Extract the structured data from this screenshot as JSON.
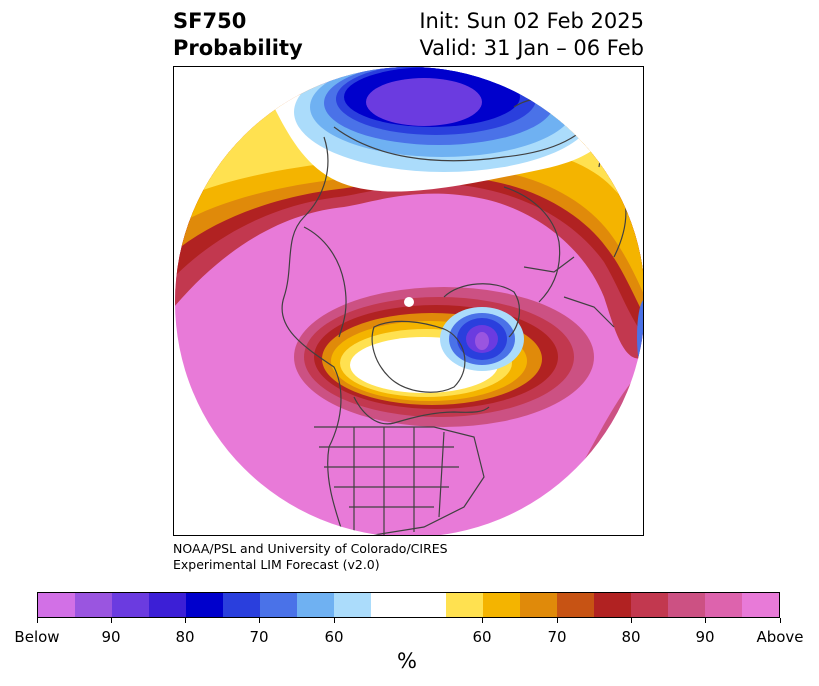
{
  "title": {
    "line1": "SF750",
    "line2": "Probability"
  },
  "dates": {
    "init": "Init: Sun 02 Feb 2025",
    "valid": "Valid: 31 Jan – 06 Feb"
  },
  "credit": {
    "line1": "NOAA/PSL and University of Colorado/CIRES",
    "line2": "Experimental LIM Forecast (v2.0)"
  },
  "colorbar": {
    "colors": [
      "#d270e6",
      "#9a55e0",
      "#6b3be0",
      "#3c1fd6",
      "#0000cc",
      "#2a3fdd",
      "#4a72e8",
      "#6fb1f2",
      "#abdcfb",
      "#ffffff",
      "#ffe150",
      "#f4b400",
      "#e08a0a",
      "#c75314",
      "#b12222",
      "#c2384f",
      "#cc5183",
      "#dd63ad",
      "#e87ad8"
    ],
    "tick_labels": [
      "Below",
      "90",
      "80",
      "70",
      "60",
      "60",
      "70",
      "80",
      "90",
      "Above"
    ],
    "unit": "%"
  },
  "map": {
    "projection": "north-polar-stereographic",
    "above_color": "#e87ad8",
    "below_color": "#0000cc"
  }
}
